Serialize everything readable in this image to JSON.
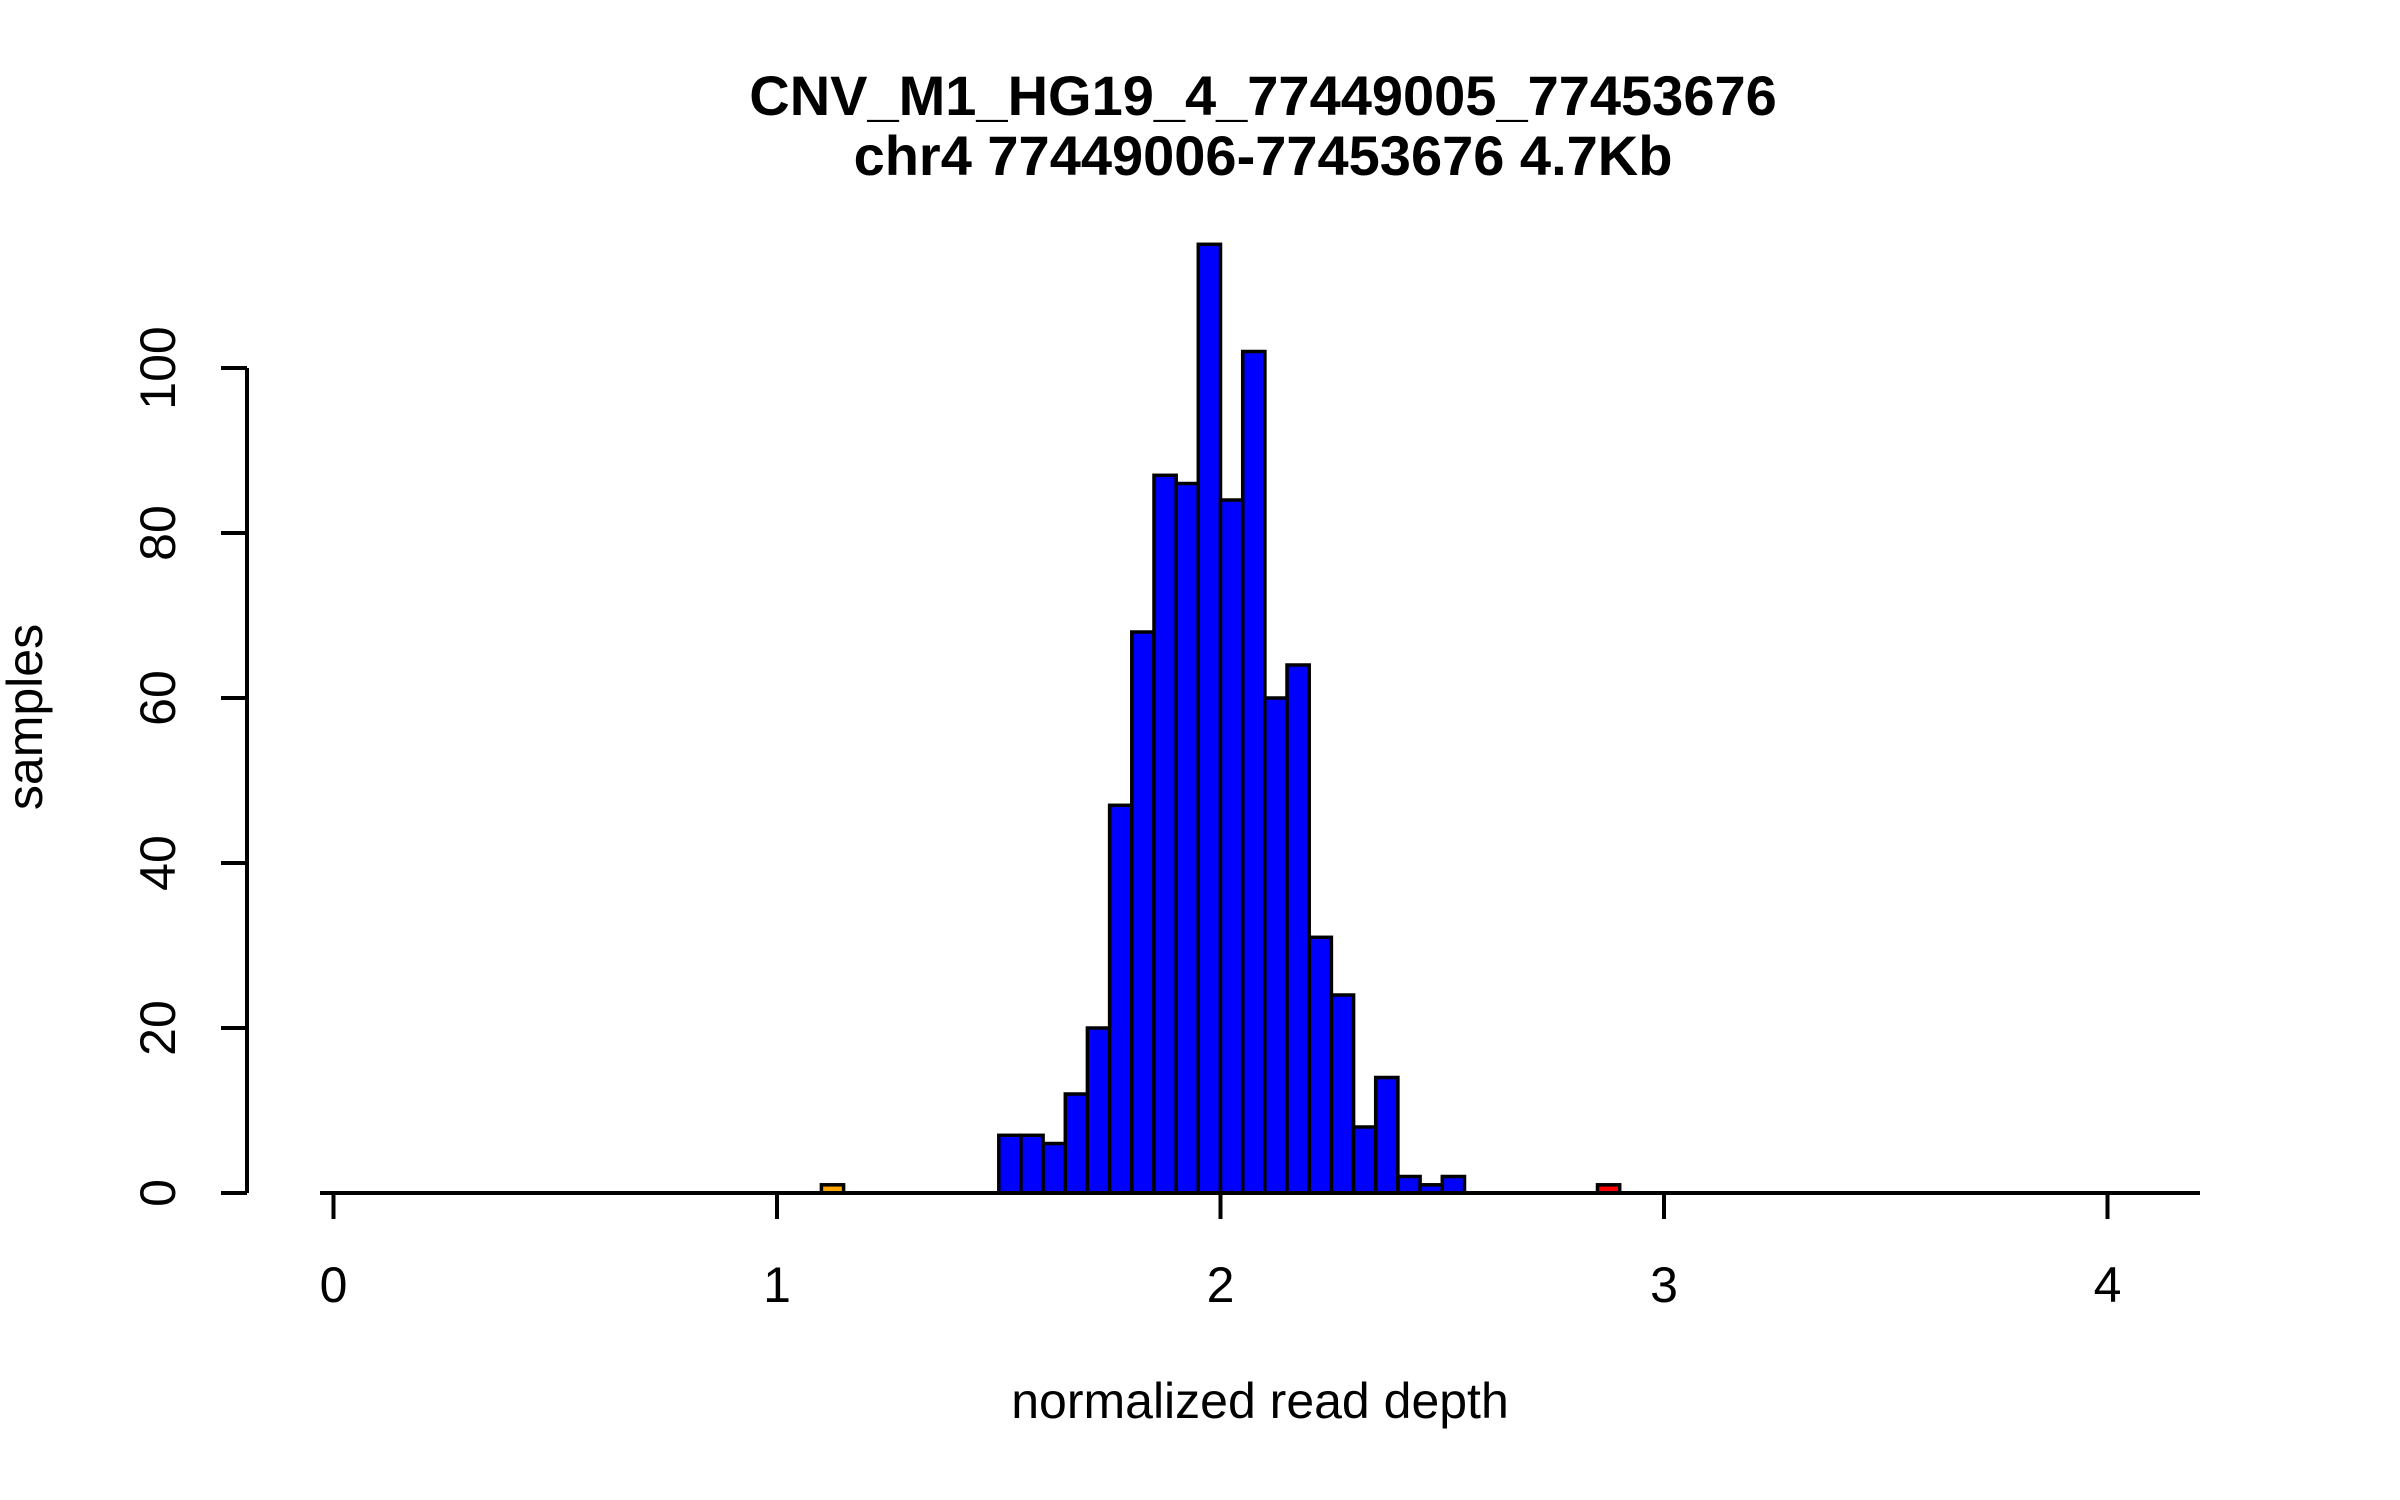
{
  "chart_data": {
    "type": "bar",
    "subtype": "histogram",
    "title": "CNV_M1_HG19_4_77449005_77453676",
    "subtitle": "chr4 77449006-77453676 4.7Kb",
    "xlabel": "normalized read depth",
    "ylabel": "samples",
    "x_ticks": [
      0,
      1,
      2,
      3,
      4
    ],
    "y_ticks": [
      0,
      20,
      40,
      60,
      80,
      100
    ],
    "x_range": [
      -0.03,
      4.21
    ],
    "y_range": [
      0,
      116
    ],
    "grid": false,
    "legend": "none",
    "bin_width": 0.05,
    "default_bar_color": "#0000FF",
    "bar_border_color": "#000000",
    "axis_color": "#000000",
    "background_color": "#FFFFFF",
    "bars": [
      {
        "bin_start": 1.1,
        "count": 1,
        "color": "#FFA500"
      },
      {
        "bin_start": 1.5,
        "count": 7
      },
      {
        "bin_start": 1.55,
        "count": 7
      },
      {
        "bin_start": 1.6,
        "count": 6
      },
      {
        "bin_start": 1.65,
        "count": 12
      },
      {
        "bin_start": 1.7,
        "count": 20
      },
      {
        "bin_start": 1.75,
        "count": 47
      },
      {
        "bin_start": 1.8,
        "count": 68
      },
      {
        "bin_start": 1.85,
        "count": 87
      },
      {
        "bin_start": 1.9,
        "count": 86
      },
      {
        "bin_start": 1.95,
        "count": 115
      },
      {
        "bin_start": 2.0,
        "count": 84
      },
      {
        "bin_start": 2.05,
        "count": 102
      },
      {
        "bin_start": 2.1,
        "count": 60
      },
      {
        "bin_start": 2.15,
        "count": 64
      },
      {
        "bin_start": 2.2,
        "count": 31
      },
      {
        "bin_start": 2.25,
        "count": 24
      },
      {
        "bin_start": 2.3,
        "count": 8
      },
      {
        "bin_start": 2.35,
        "count": 14
      },
      {
        "bin_start": 2.4,
        "count": 2
      },
      {
        "bin_start": 2.45,
        "count": 1
      },
      {
        "bin_start": 2.5,
        "count": 2
      },
      {
        "bin_start": 2.85,
        "count": 1,
        "color": "#FF0000"
      }
    ]
  }
}
